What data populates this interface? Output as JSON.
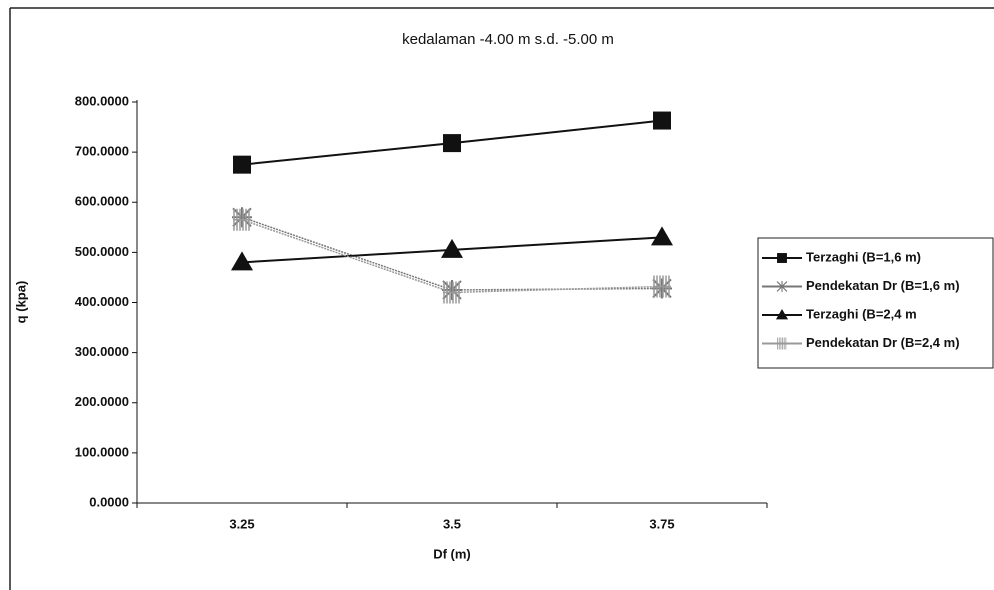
{
  "chart_data": {
    "type": "line",
    "title": "kedalaman -4.00 m s.d. -5.00 m",
    "x_label": "Df (m)",
    "y_label": "q (kpa)",
    "categories": [
      "3.25",
      "3.5",
      "3.75"
    ],
    "ylim": [
      0,
      800
    ],
    "yticks": [
      {
        "value": 0,
        "label": "0.0000"
      },
      {
        "value": 100,
        "label": "100.0000"
      },
      {
        "value": 200,
        "label": "200.0000"
      },
      {
        "value": 300,
        "label": "300.0000"
      },
      {
        "value": 400,
        "label": "400.0000"
      },
      {
        "value": 500,
        "label": "500.0000"
      },
      {
        "value": 600,
        "label": "600.0000"
      },
      {
        "value": 700,
        "label": "700.0000"
      },
      {
        "value": 800,
        "label": "800.0000"
      }
    ],
    "legend": "right",
    "series": [
      {
        "name": "Terzaghi (B=1,6 m)",
        "color": "#111111",
        "marker": "square",
        "values": [
          675,
          718,
          763
        ]
      },
      {
        "name": "Pendekatan Dr (B=1,6 m)",
        "color": "#777777",
        "marker": "star",
        "values": [
          570,
          425,
          428
        ]
      },
      {
        "name": "Terzaghi (B=2,4 m",
        "color": "#111111",
        "marker": "triangle",
        "values": [
          480,
          505,
          530
        ]
      },
      {
        "name": "Pendekatan Dr (B=2,4 m)",
        "color": "#999999",
        "marker": "hatch",
        "values": [
          565,
          420,
          432
        ]
      }
    ]
  }
}
